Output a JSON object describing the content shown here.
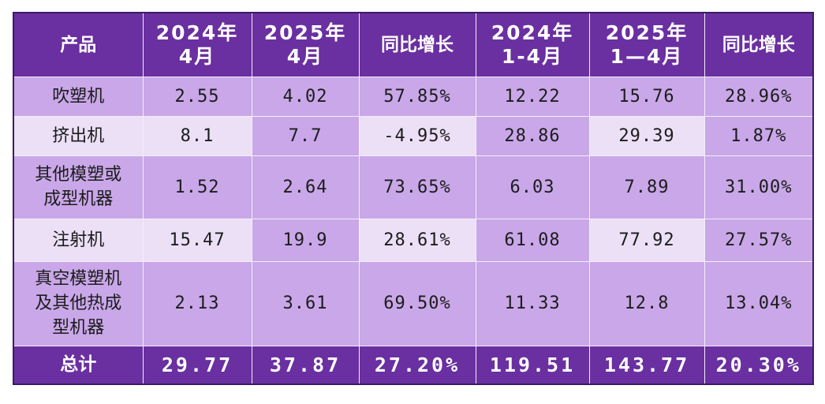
{
  "chart_data": {
    "type": "table",
    "columns": [
      "产品",
      "2024年\n4月",
      "2025年\n4月",
      "同比增长",
      "2024年\n1-4月",
      "2025年\n1—4月",
      "同比增长"
    ],
    "header": {
      "product": "产品",
      "c1_line1": "2024年",
      "c1_line2": "4月",
      "c2_line1": "2025年",
      "c2_line2": "4月",
      "c3": "同比增长",
      "c4_line1": "2024年",
      "c4_line2": "1-4月",
      "c5_line1": "2025年",
      "c5_line2": "1—4月",
      "c6": "同比增长"
    },
    "rows": [
      {
        "name_lines": [
          "吹塑机"
        ],
        "cells": [
          "2.55",
          "4.02",
          "57.85%",
          "12.22",
          "15.76",
          "28.96%"
        ]
      },
      {
        "name_lines": [
          "挤出机"
        ],
        "cells": [
          "8.1",
          "7.7",
          "-4.95%",
          "28.86",
          "29.39",
          "1.87%"
        ]
      },
      {
        "name_lines": [
          "其他模塑或",
          "成型机器"
        ],
        "cells": [
          "1.52",
          "2.64",
          "73.65%",
          "6.03",
          "7.89",
          "31.00%"
        ]
      },
      {
        "name_lines": [
          "注射机"
        ],
        "cells": [
          "15.47",
          "19.9",
          "28.61%",
          "61.08",
          "77.92",
          "27.57%"
        ]
      },
      {
        "name_lines": [
          "真空模塑机",
          "及其他热成",
          "型机器"
        ],
        "cells": [
          "2.13",
          "3.61",
          "69.50%",
          "11.33",
          "12.8",
          "13.04%"
        ]
      }
    ],
    "total": {
      "label": "总计",
      "cells": [
        "29.77",
        "37.87",
        "27.20%",
        "119.51",
        "143.77",
        "20.30%"
      ]
    }
  },
  "colors": {
    "header_bg": "#6a2fa0",
    "row_dark": "#c9a7e8",
    "row_light": "#ebe0f6",
    "border": "#3b1c62"
  }
}
